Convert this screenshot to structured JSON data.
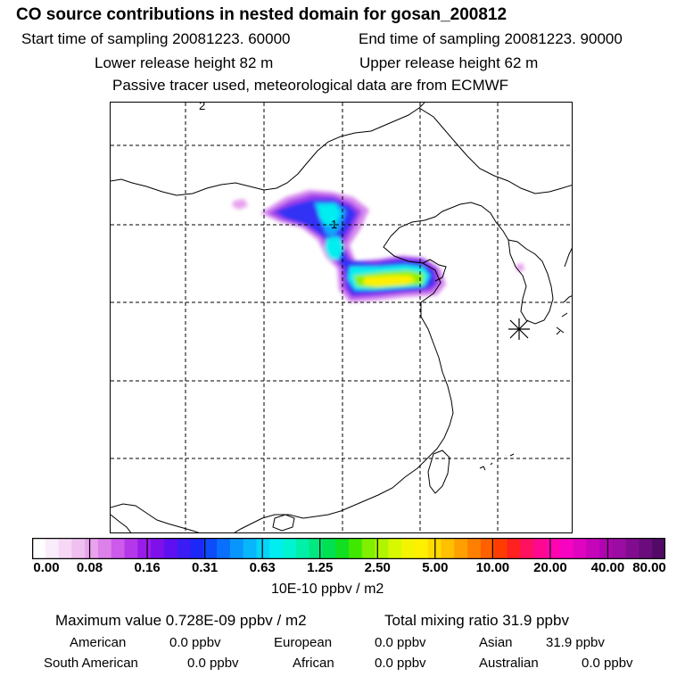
{
  "header": {
    "title": "CO  source contributions in nested domain for gosan_200812",
    "start_time": "Start time of sampling 20081223. 60000",
    "end_time": "End time of sampling 20081223. 90000",
    "lower_height": "Lower release height   82 m",
    "upper_height": "Upper release height   62 m",
    "tracer_note": "Passive tracer used, meteorological data are from ECMWF"
  },
  "map": {
    "contour_labels": [
      "1",
      "2"
    ]
  },
  "colorbar": {
    "tick_labels": [
      "0.00",
      "0.08",
      "0.16",
      "0.31",
      "0.63",
      "1.25",
      "2.50",
      "5.00",
      "10.00",
      "20.00",
      "40.00",
      "80.00"
    ],
    "units": "10E-10 ppbv / m2",
    "colors": [
      "#ffffff",
      "#fbecfb",
      "#f6d8f6",
      "#f0c0f0",
      "#e8a2ee",
      "#dc80ea",
      "#cc5aea",
      "#b438ea",
      "#9a1cea",
      "#7e10ea",
      "#5e10f0",
      "#3c1cf4",
      "#1c28f8",
      "#0c4cfa",
      "#0870fc",
      "#0896fc",
      "#08b6fc",
      "#06d4f8",
      "#00eef0",
      "#00f4d0",
      "#00f0a8",
      "#00e880",
      "#00e050",
      "#10e020",
      "#40e800",
      "#80f000",
      "#b0f400",
      "#d8f800",
      "#f4f400",
      "#fff000",
      "#ffda00",
      "#ffc000",
      "#ffa000",
      "#ff8000",
      "#ff6000",
      "#ff3c00",
      "#ff2020",
      "#ff1060",
      "#ff0890",
      "#ff04b0",
      "#f604c0",
      "#e004c0",
      "#c604ba",
      "#b004b0",
      "#9a0ca2",
      "#820c90",
      "#6a0c7c",
      "#520a66"
    ]
  },
  "summary": {
    "max_value": "Maximum value  0.728E-09 ppbv / m2",
    "total_mixing": "Total mixing ratio       31.9 ppbv"
  },
  "regions": [
    {
      "name": "American",
      "value": "0.0 ppbv"
    },
    {
      "name": "European",
      "value": "0.0 ppbv"
    },
    {
      "name": "Asian",
      "value": "31.9 ppbv"
    },
    {
      "name": "South American",
      "value": "0.0 ppbv"
    },
    {
      "name": "African",
      "value": "0.0 ppbv"
    },
    {
      "name": "Australian",
      "value": "0.0 ppbv"
    }
  ]
}
